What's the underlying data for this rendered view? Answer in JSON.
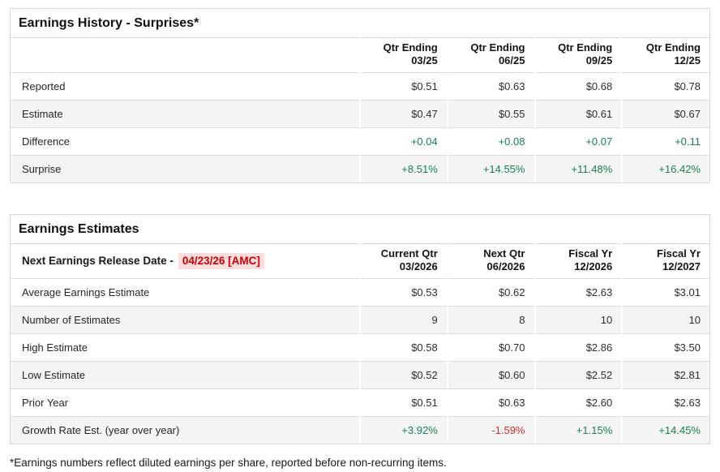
{
  "history": {
    "title": "Earnings History - Surprises*",
    "columns": [
      {
        "l1": "Qtr Ending",
        "l2": "03/25"
      },
      {
        "l1": "Qtr Ending",
        "l2": "06/25"
      },
      {
        "l1": "Qtr Ending",
        "l2": "09/25"
      },
      {
        "l1": "Qtr Ending",
        "l2": "12/25"
      }
    ],
    "rows": [
      {
        "label": "Reported",
        "values": [
          "$0.51",
          "$0.63",
          "$0.68",
          "$0.78"
        ]
      },
      {
        "label": "Estimate",
        "values": [
          "$0.47",
          "$0.55",
          "$0.61",
          "$0.67"
        ]
      },
      {
        "label": "Difference",
        "values": [
          "+0.04",
          "+0.08",
          "+0.07",
          "+0.11"
        ]
      },
      {
        "label": "Surprise",
        "values": [
          "+8.51%",
          "+14.55%",
          "+11.48%",
          "+16.42%"
        ]
      }
    ]
  },
  "estimates": {
    "title": "Earnings Estimates",
    "release_date_label": "Next Earnings Release Date -",
    "release_date_value": "04/23/26 [AMC]",
    "columns": [
      {
        "l1": "Current Qtr",
        "l2": "03/2026"
      },
      {
        "l1": "Next Qtr",
        "l2": "06/2026"
      },
      {
        "l1": "Fiscal Yr",
        "l2": "12/2026"
      },
      {
        "l1": "Fiscal Yr",
        "l2": "12/2027"
      }
    ],
    "rows": [
      {
        "label": "Average Earnings Estimate",
        "values": [
          "$0.53",
          "$0.62",
          "$2.63",
          "$3.01"
        ]
      },
      {
        "label": "Number of Estimates",
        "values": [
          "9",
          "8",
          "10",
          "10"
        ]
      },
      {
        "label": "High Estimate",
        "values": [
          "$0.58",
          "$0.70",
          "$2.86",
          "$3.50"
        ]
      },
      {
        "label": "Low Estimate",
        "values": [
          "$0.52",
          "$0.60",
          "$2.52",
          "$2.81"
        ]
      },
      {
        "label": "Prior Year",
        "values": [
          "$0.51",
          "$0.63",
          "$2.60",
          "$2.63"
        ]
      },
      {
        "label": "Growth Rate Est. (year over year)",
        "values": [
          "+3.92%",
          "-1.59%",
          "+1.15%",
          "+14.45%"
        ]
      }
    ]
  },
  "footnote": "*Earnings numbers reflect diluted earnings per share, reported before non-recurring items.",
  "colors": {
    "positive": "#1a8053",
    "negative": "#d22c2c",
    "release_date_red": "#cc0000",
    "release_date_bg": "#fcdcdc",
    "stripe": "#f4f4f4",
    "border": "#d9d9d9"
  }
}
